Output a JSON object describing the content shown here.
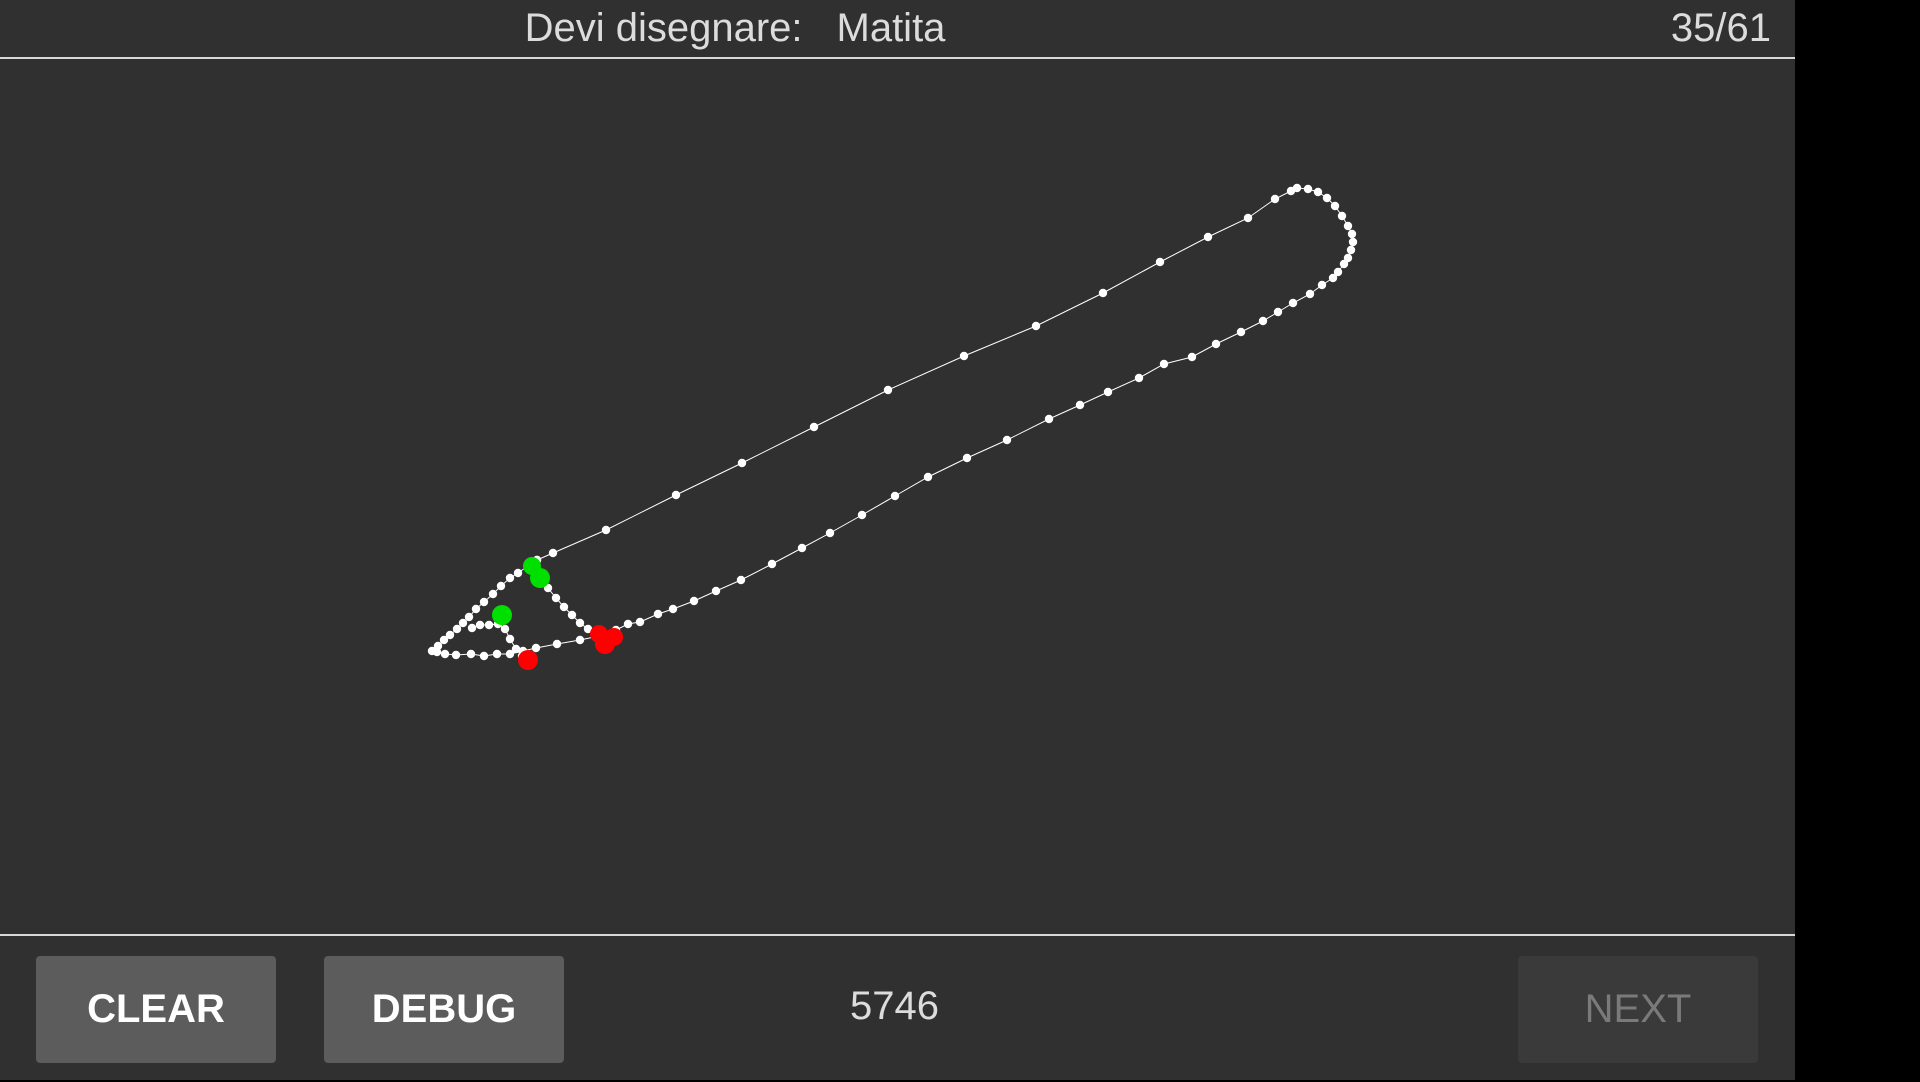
{
  "header": {
    "prompt_label": "Devi disegnare:",
    "target_word": "Matita",
    "progress": "35/61"
  },
  "footer": {
    "clear_label": "CLEAR",
    "debug_label": "DEBUG",
    "score": "5746",
    "next_label": "NEXT",
    "next_enabled": false
  },
  "colors": {
    "background": "#303030",
    "stroke_points": "#ffffff",
    "stroke_start": "#00e000",
    "stroke_end": "#ff0000",
    "button": "#5c5c5d",
    "button_disabled": "#3a3a3b"
  }
}
